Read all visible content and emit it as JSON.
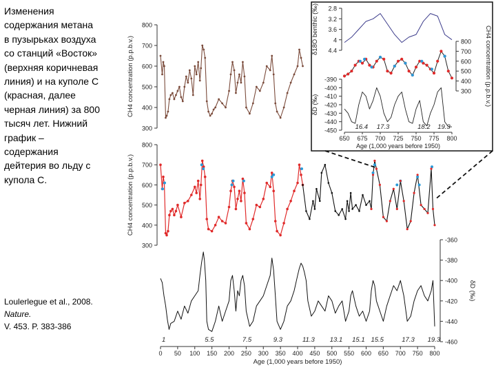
{
  "caption": {
    "text": "Изменения содержания метана в пузырьках воздуха со станций «Восток» (верхняя коричневая линия) и на куполе С (красная, далее черная линия) за 800 тысяч лет. Нижний график – содержания дейтерия во льду с купола С."
  },
  "citation": {
    "authors": "Loulerlegue et al., 2008.",
    "journal": "Nature.",
    "volume": "V. 453.  P. 383-386"
  },
  "colors": {
    "vostok": "#7a4a3a",
    "domec_red": "#e02a2a",
    "domec_black": "#111111",
    "blue_points": "#2a9ad8",
    "benthic": "#3a3a8a"
  },
  "chart_data": [
    {
      "id": "vostok",
      "type": "line",
      "title": "",
      "ylabel": "CH4 concentration (p.p.b.v.)",
      "ylim": [
        300,
        800
      ],
      "yticks": [
        "800",
        "700",
        "600",
        "500",
        "400",
        "300"
      ],
      "x": [
        0,
        5,
        8,
        11,
        15,
        18,
        22,
        26,
        30,
        35,
        40,
        45,
        50,
        55,
        60,
        65,
        70,
        75,
        80,
        85,
        90,
        95,
        100,
        105,
        110,
        115,
        118,
        122,
        126,
        130,
        135,
        140,
        145,
        150,
        155,
        160,
        170,
        180,
        190,
        200,
        205,
        210,
        215,
        220,
        225,
        230,
        235,
        240,
        245,
        250,
        260,
        270,
        280,
        290,
        300,
        310,
        320,
        325,
        330,
        335,
        340,
        350,
        360,
        370,
        380,
        390,
        400,
        405,
        410,
        415
      ],
      "values": [
        650,
        560,
        620,
        600,
        350,
        360,
        380,
        440,
        460,
        470,
        440,
        460,
        480,
        500,
        450,
        430,
        500,
        550,
        520,
        580,
        540,
        460,
        600,
        560,
        620,
        530,
        590,
        700,
        680,
        640,
        430,
        380,
        360,
        370,
        390,
        400,
        440,
        420,
        400,
        480,
        560,
        620,
        580,
        470,
        520,
        560,
        520,
        620,
        550,
        400,
        370,
        420,
        500,
        480,
        520,
        600,
        580,
        650,
        560,
        420,
        380,
        350,
        400,
        470,
        520,
        560,
        600,
        680,
        640,
        600
      ]
    },
    {
      "id": "domec_ch4",
      "type": "line",
      "ylabel": "CH4 concentration (p.p.b.v.)",
      "ylim": [
        300,
        800
      ],
      "yticks": [
        "800",
        "700",
        "600",
        "500",
        "400",
        "300"
      ],
      "series": [
        {
          "name": "Dome C (red)",
          "x": [
            0,
            5,
            8,
            11,
            15,
            18,
            22,
            26,
            30,
            35,
            40,
            45,
            50,
            60,
            70,
            80,
            90,
            100,
            105,
            110,
            115,
            118,
            122,
            126,
            130,
            135,
            140,
            150,
            160,
            170,
            180,
            190,
            200,
            205,
            210,
            215,
            220,
            225,
            230,
            235,
            240,
            245,
            250,
            260,
            270,
            280,
            290,
            300,
            310,
            320,
            325,
            330,
            335,
            340,
            350,
            360,
            370,
            380,
            390,
            400,
            405,
            410,
            415
          ],
          "values": [
            700,
            580,
            640,
            610,
            360,
            350,
            370,
            450,
            470,
            480,
            450,
            470,
            500,
            440,
            510,
            520,
            550,
            590,
            560,
            620,
            530,
            600,
            720,
            690,
            640,
            430,
            380,
            370,
            400,
            440,
            420,
            410,
            490,
            570,
            620,
            590,
            480,
            530,
            570,
            520,
            630,
            560,
            410,
            380,
            430,
            500,
            490,
            530,
            610,
            590,
            660,
            570,
            420,
            370,
            350,
            410,
            480,
            520,
            570,
            610,
            700,
            650,
            600
          ]
        },
        {
          "name": "Dome C (black)",
          "x": [
            415,
            425,
            435,
            445,
            450,
            455,
            465,
            470,
            480,
            490,
            500,
            510,
            520,
            530,
            540,
            545,
            550,
            555,
            560,
            570,
            580,
            590,
            600,
            610,
            615,
            620,
            625,
            630,
            640,
            650,
            660,
            670,
            680,
            690,
            700,
            710,
            720,
            730,
            740,
            750,
            760,
            770,
            780,
            790,
            795,
            800
          ],
          "values": [
            600,
            470,
            430,
            520,
            480,
            580,
            520,
            660,
            700,
            610,
            560,
            470,
            450,
            480,
            430,
            520,
            470,
            560,
            480,
            500,
            470,
            550,
            500,
            520,
            480,
            650,
            720,
            680,
            600,
            440,
            420,
            520,
            580,
            480,
            620,
            520,
            380,
            420,
            560,
            650,
            500,
            480,
            460,
            680,
            480,
            400
          ]
        }
      ],
      "highlights": {
        "name": "blue points",
        "x": [
          6,
          12,
          120,
          125,
          208,
          212,
          243,
          325,
          330,
          412,
          620,
          625,
          690,
          700,
          750,
          755,
          792
        ],
        "values": [
          580,
          610,
          700,
          680,
          600,
          620,
          620,
          640,
          650,
          680,
          660,
          700,
          600,
          620,
          640,
          600,
          690
        ]
      }
    },
    {
      "id": "domec_dd",
      "type": "line",
      "xlabel": "Age (1,000 years before 1950)",
      "ylabel": "δD (‰)",
      "ylim": [
        -460,
        -360
      ],
      "yticks": [
        "-360",
        "-380",
        "-400",
        "-420",
        "-440",
        "-460"
      ],
      "xlim": [
        0,
        800
      ],
      "xticks": [
        "0",
        "50",
        "100",
        "150",
        "200",
        "250",
        "300",
        "350",
        "400",
        "450",
        "500",
        "550",
        "600",
        "650",
        "700",
        "750",
        "800"
      ],
      "stages": [
        "1",
        "5.5",
        "7.5",
        "9.3",
        "11.3",
        "13.1",
        "15.1",
        "15.5",
        "17.3",
        "19.3"
      ],
      "stage_x": [
        0,
        125,
        235,
        325,
        410,
        490,
        555,
        610,
        700,
        775
      ],
      "x": [
        0,
        5,
        10,
        15,
        20,
        25,
        30,
        40,
        50,
        60,
        70,
        80,
        90,
        100,
        110,
        115,
        120,
        125,
        128,
        132,
        135,
        140,
        150,
        160,
        170,
        180,
        190,
        200,
        205,
        210,
        215,
        220,
        225,
        230,
        235,
        240,
        245,
        250,
        260,
        270,
        280,
        290,
        300,
        310,
        320,
        325,
        330,
        335,
        340,
        350,
        360,
        370,
        380,
        390,
        400,
        405,
        410,
        415,
        420,
        425,
        430,
        440,
        450,
        460,
        470,
        480,
        490,
        500,
        510,
        520,
        530,
        540,
        550,
        555,
        560,
        570,
        580,
        590,
        600,
        610,
        615,
        620,
        625,
        630,
        640,
        650,
        660,
        670,
        680,
        690,
        700,
        710,
        720,
        730,
        740,
        750,
        760,
        770,
        780,
        790,
        795,
        800
      ],
      "values": [
        -398,
        -402,
        -415,
        -425,
        -438,
        -448,
        -442,
        -440,
        -430,
        -438,
        -425,
        -432,
        -420,
        -415,
        -410,
        -395,
        -382,
        -372,
        -380,
        -400,
        -440,
        -448,
        -450,
        -440,
        -425,
        -440,
        -430,
        -420,
        -400,
        -395,
        -410,
        -430,
        -410,
        -415,
        -400,
        -395,
        -405,
        -430,
        -445,
        -440,
        -425,
        -420,
        -415,
        -405,
        -395,
        -378,
        -390,
        -415,
        -440,
        -448,
        -440,
        -425,
        -420,
        -410,
        -395,
        -388,
        -383,
        -386,
        -392,
        -400,
        -420,
        -435,
        -430,
        -420,
        -425,
        -430,
        -415,
        -420,
        -432,
        -425,
        -420,
        -440,
        -430,
        -415,
        -410,
        -425,
        -435,
        -430,
        -440,
        -430,
        -410,
        -400,
        -405,
        -420,
        -430,
        -440,
        -425,
        -415,
        -405,
        -410,
        -400,
        -415,
        -440,
        -435,
        -420,
        -410,
        -405,
        -415,
        -420,
        -410,
        -400,
        -445
      ]
    },
    {
      "id": "inset_benthic",
      "type": "line",
      "ylabel": "δ18O benthic (‰)",
      "ylim": [
        2.8,
        4.4
      ],
      "yticks": [
        "2.8",
        "3.2",
        "3.6",
        "4",
        "4.4"
      ],
      "x": [
        650,
        660,
        670,
        680,
        690,
        700,
        710,
        720,
        730,
        740,
        750,
        760,
        770,
        780,
        790,
        800
      ],
      "values": [
        4.1,
        3.9,
        3.6,
        3.3,
        3.2,
        3.0,
        3.4,
        3.8,
        4.1,
        3.9,
        3.8,
        3.3,
        3.0,
        3.1,
        3.8,
        4.0
      ]
    },
    {
      "id": "inset_ch4",
      "type": "line",
      "ylabel": "CH4 concentration (p.p.b.v.)",
      "ylim": [
        300,
        800
      ],
      "yticks": [
        "800",
        "700",
        "600",
        "500",
        "400",
        "300"
      ],
      "x": [
        650,
        655,
        660,
        665,
        670,
        675,
        680,
        685,
        690,
        695,
        700,
        705,
        710,
        715,
        720,
        725,
        730,
        735,
        740,
        745,
        750,
        755,
        760,
        765,
        770,
        775,
        780,
        785,
        790,
        795,
        800
      ],
      "values": [
        450,
        470,
        500,
        560,
        600,
        580,
        620,
        560,
        540,
        600,
        640,
        620,
        500,
        480,
        550,
        600,
        620,
        580,
        500,
        460,
        540,
        600,
        580,
        560,
        520,
        480,
        600,
        700,
        650,
        500,
        430
      ],
      "highlights": {
        "x": [
          672,
          678,
          688,
          700,
          720,
          735,
          745,
          758,
          772,
          790
        ],
        "values": [
          600,
          620,
          540,
          640,
          550,
          580,
          460,
          600,
          520,
          650
        ]
      }
    },
    {
      "id": "inset_dd",
      "type": "line",
      "xlabel": "Age (1,000 years before 1950)",
      "ylabel": "δD (‰)",
      "ylim": [
        -450,
        -390
      ],
      "yticks": [
        "-390",
        "-400",
        "-410",
        "-420",
        "-430",
        "-440",
        "-450"
      ],
      "xlim": [
        650,
        800
      ],
      "xticks": [
        "650",
        "675",
        "700",
        "725",
        "750",
        "775",
        "800"
      ],
      "stages": [
        "16.4",
        "17.3",
        "18.2",
        "19.3"
      ],
      "stage_x": [
        665,
        695,
        752,
        780
      ],
      "x": [
        650,
        655,
        660,
        665,
        670,
        675,
        680,
        685,
        690,
        695,
        700,
        705,
        710,
        715,
        720,
        725,
        730,
        735,
        740,
        745,
        750,
        755,
        760,
        765,
        770,
        775,
        780,
        785,
        790,
        795,
        800
      ],
      "values": [
        -425,
        -430,
        -440,
        -442,
        -420,
        -405,
        -410,
        -425,
        -415,
        -400,
        -410,
        -430,
        -440,
        -435,
        -420,
        -410,
        -405,
        -425,
        -440,
        -442,
        -425,
        -415,
        -440,
        -445,
        -430,
        -420,
        -405,
        -400,
        -440,
        -446,
        -446
      ]
    }
  ]
}
